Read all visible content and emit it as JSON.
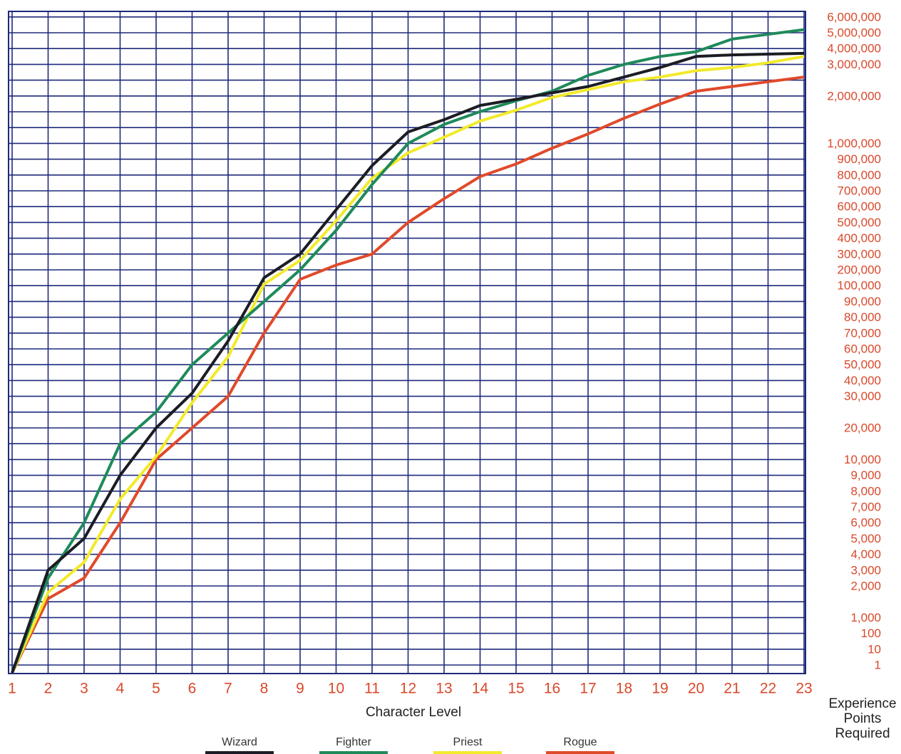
{
  "chart_data": {
    "type": "line",
    "x_label": "Character Level",
    "y_label": "Experience Points Required",
    "x": [
      1,
      2,
      3,
      4,
      5,
      6,
      7,
      8,
      9,
      10,
      11,
      12,
      13,
      14,
      15,
      16,
      17,
      18,
      19,
      20,
      21,
      22,
      23
    ],
    "xlim": [
      1,
      23
    ],
    "xticks": [
      1,
      2,
      3,
      4,
      5,
      6,
      7,
      8,
      9,
      10,
      11,
      12,
      13,
      14,
      15,
      16,
      17,
      18,
      19,
      20,
      21,
      22,
      23
    ],
    "ylim": [
      0,
      6000000
    ],
    "yticks": [
      1,
      10,
      100,
      {
        "value": 1000,
        "label": "1,000"
      },
      {
        "value": 2000,
        "label": "2,000"
      },
      {
        "value": 3000,
        "label": "3,000"
      },
      {
        "value": 4000,
        "label": "4,000"
      },
      {
        "value": 5000,
        "label": "5,000"
      },
      {
        "value": 6000,
        "label": "6,000"
      },
      {
        "value": 7000,
        "label": "7,000"
      },
      {
        "value": 8000,
        "label": "8,000"
      },
      {
        "value": 9000,
        "label": "9,000"
      },
      {
        "value": 10000,
        "label": "10,000"
      },
      {
        "value": 20000,
        "label": "20,000"
      },
      {
        "value": 30000,
        "label": "30,000"
      },
      {
        "value": 40000,
        "label": "40,000"
      },
      {
        "value": 50000,
        "label": "50,000"
      },
      {
        "value": 60000,
        "label": "60,000"
      },
      {
        "value": 70000,
        "label": "70,000"
      },
      {
        "value": 80000,
        "label": "80,000"
      },
      {
        "value": 90000,
        "label": "90,000"
      },
      {
        "value": 100000,
        "label": "100,000"
      },
      {
        "value": 200000,
        "label": "200,000"
      },
      {
        "value": 300000,
        "label": "300,000"
      },
      {
        "value": 400000,
        "label": "400,000"
      },
      {
        "value": 500000,
        "label": "500,000"
      },
      {
        "value": 600000,
        "label": "600,000"
      },
      {
        "value": 700000,
        "label": "700,000"
      },
      {
        "value": 800000,
        "label": "800,000"
      },
      {
        "value": 900000,
        "label": "900,000"
      },
      {
        "value": 1000000,
        "label": "1,000,000"
      },
      {
        "value": 2000000,
        "label": "2,000,000"
      },
      {
        "value": 3000000,
        "label": "3,000,000"
      },
      {
        "value": 4000000,
        "label": "4,000,000"
      },
      {
        "value": 5000000,
        "label": "5,000,000"
      },
      {
        "value": 6000000,
        "label": "6,000,000"
      }
    ],
    "grid": true,
    "series": [
      {
        "name": "Wizard",
        "color": "#1c1c24",
        "values": [
          0,
          3000,
          5000,
          9000,
          20000,
          32000,
          65000,
          150000,
          300000,
          580000,
          860000,
          1240000,
          1500000,
          1800000,
          1930000,
          2100000,
          2300000,
          2600000,
          2900000,
          3500000,
          3600000,
          3650000,
          3700000
        ]
      },
      {
        "name": "Fighter",
        "color": "#1f8a5a",
        "values": [
          0,
          2500,
          6000,
          15000,
          25000,
          50000,
          70000,
          90000,
          200000,
          450000,
          740000,
          1000000,
          1400000,
          1670000,
          1900000,
          2150000,
          2650000,
          3000000,
          3500000,
          3800000,
          4600000,
          4900000,
          5200000
        ]
      },
      {
        "name": "Priest",
        "color": "#f2ea2a",
        "values": [
          0,
          1800,
          3500,
          7500,
          11000,
          28000,
          55000,
          110000,
          260000,
          510000,
          780000,
          940000,
          1130000,
          1470000,
          1700000,
          1970000,
          2200000,
          2450000,
          2600000,
          2800000,
          2900000,
          3100000,
          3500000
        ]
      },
      {
        "name": "Rogue",
        "color": "#e04a2a",
        "values": [
          0,
          1600,
          2500,
          6000,
          10000,
          20000,
          30000,
          70000,
          140000,
          230000,
          300000,
          500000,
          650000,
          790000,
          870000,
          970000,
          1200000,
          1530000,
          1830000,
          2150000,
          2300000,
          2450000,
          2600000
        ]
      }
    ]
  }
}
